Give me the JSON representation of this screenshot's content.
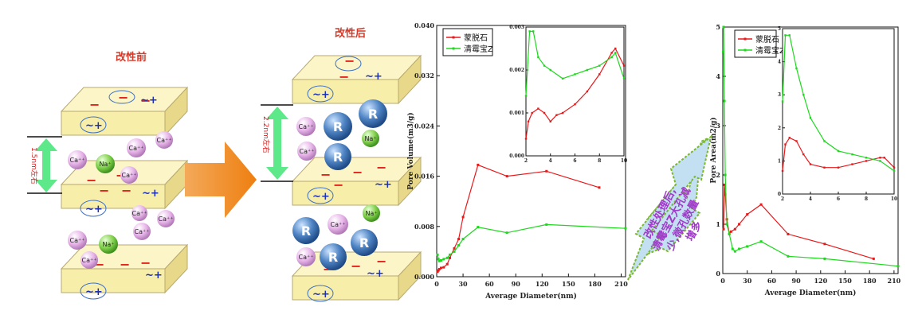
{
  "diagram": {
    "before_label": "改性前",
    "after_label": "改性后",
    "spacing_before": "1.5nm左右",
    "spacing_after": "2.2nm左右",
    "ion_ca": "Ca⁺⁺",
    "ion_na": "Na⁺",
    "ion_r": "R",
    "layer_sign": "~+",
    "minus_sign": "−",
    "callout_text": [
      "改性处理后,",
      "清霉宝Z大孔减",
      "少,微孔数量",
      "增多"
    ],
    "colors": {
      "slab": "#f7eeaa",
      "ca_ion": "#e6b3e8",
      "na_ion": "#7fcf4a",
      "r_ion": "#4f84c4",
      "arrow": "#f08a1c",
      "spacing": "#5de88a",
      "callout_fill": "#c2e0f2",
      "callout_border": "#7ab82a",
      "minus": "#e0201b",
      "plus": "#1b2fb8"
    }
  },
  "chart_data": [
    {
      "type": "line",
      "ylabel": "Pore Volume(m3/g)",
      "xlabel": "Average Diameter(nm)",
      "xlim": [
        0,
        215
      ],
      "ylim": [
        0,
        0.04
      ],
      "xticks": [
        "0",
        "30",
        "60",
        "90",
        "120",
        "150",
        "180",
        "210"
      ],
      "yticks": [
        "0.000",
        "0.008",
        "0.016",
        "0.024",
        "0.032",
        "0.040"
      ],
      "legend_position": "top-left",
      "series": [
        {
          "name": "蒙脱石",
          "color": "#e8191b",
          "x": [
            1,
            2,
            3,
            5,
            8,
            12,
            15,
            20,
            25,
            30,
            47,
            80,
            125,
            185
          ],
          "y": [
            0.0008,
            0.001,
            0.0012,
            0.0014,
            0.0015,
            0.002,
            0.003,
            0.0045,
            0.006,
            0.0095,
            0.0178,
            0.016,
            0.0168,
            0.0142
          ]
        },
        {
          "name": "清霉宝Z",
          "color": "#1ed81e",
          "x": [
            1,
            2,
            3,
            5,
            8,
            12,
            15,
            20,
            25,
            30,
            47,
            80,
            125,
            215
          ],
          "y": [
            0.0035,
            0.0028,
            0.0025,
            0.0026,
            0.0028,
            0.003,
            0.0035,
            0.004,
            0.005,
            0.006,
            0.0079,
            0.007,
            0.0083,
            0.0077
          ]
        }
      ],
      "inset": {
        "xlim": [
          2,
          10
        ],
        "ylim": [
          0,
          0.003
        ],
        "xticks": [
          "2",
          "4",
          "6",
          "8",
          "10"
        ],
        "yticks": [
          "0.000",
          "0.001",
          "0.002",
          "0.003"
        ],
        "series": [
          {
            "name": "蒙脱石",
            "x": [
              2,
              2.2,
              2.5,
              3,
              3.5,
              4,
              4.5,
              5,
              6,
              7,
              8,
              9,
              9.3,
              10
            ],
            "y": [
              0.0004,
              0.0008,
              0.001,
              0.0011,
              0.001,
              0.0008,
              0.00095,
              0.001,
              0.0012,
              0.0015,
              0.0019,
              0.0024,
              0.0025,
              0.0021
            ]
          },
          {
            "name": "清霉宝Z",
            "x": [
              2,
              2.3,
              2.6,
              3,
              3.5,
              4,
              5,
              6,
              7,
              8,
              9,
              9.3,
              10
            ],
            "y": [
              0.0014,
              0.0029,
              0.0029,
              0.0023,
              0.0021,
              0.002,
              0.0018,
              0.0019,
              0.002,
              0.0021,
              0.0023,
              0.0024,
              0.0018
            ]
          }
        ]
      }
    },
    {
      "type": "line",
      "ylabel": "Pore Area(m2/g)",
      "xlabel": "Average Diameter(nm)",
      "xlim": [
        0,
        215
      ],
      "ylim": [
        0,
        5
      ],
      "xticks": [
        "0",
        "30",
        "60",
        "90",
        "120",
        "150",
        "180",
        "210"
      ],
      "yticks": [
        "0",
        "1",
        "2",
        "3",
        "4",
        "5"
      ],
      "legend_position": "top-right",
      "series": [
        {
          "name": "蒙脱石",
          "color": "#e8191b",
          "x": [
            1,
            2,
            3,
            5,
            8,
            10,
            15,
            20,
            30,
            47,
            80,
            125,
            185
          ],
          "y": [
            0.9,
            1.8,
            1.6,
            1.1,
            0.8,
            0.85,
            0.9,
            1.0,
            1.2,
            1.4,
            0.8,
            0.6,
            0.3
          ]
        },
        {
          "name": "清霉宝Z",
          "color": "#1ed81e",
          "x": [
            0.5,
            1,
            2,
            3,
            5,
            8,
            12,
            15,
            20,
            30,
            47,
            80,
            125,
            215
          ],
          "y": [
            4.5,
            5.0,
            3.5,
            2.0,
            1.0,
            0.8,
            0.5,
            0.45,
            0.5,
            0.55,
            0.65,
            0.35,
            0.3,
            0.15
          ]
        }
      ],
      "inset": {
        "xlim": [
          2,
          10
        ],
        "ylim": [
          0,
          5
        ],
        "xticks": [
          "2",
          "4",
          "6",
          "8",
          "10"
        ],
        "yticks": [
          "0",
          "1",
          "2",
          "3",
          "4",
          "5"
        ],
        "series": [
          {
            "name": "蒙脱石",
            "x": [
              2,
              2.2,
              2.5,
              3,
              3.5,
              4,
              5,
              6,
              7,
              8,
              9,
              9.3,
              10
            ],
            "y": [
              0.7,
              1.5,
              1.7,
              1.6,
              1.2,
              0.9,
              0.8,
              0.8,
              0.9,
              1.0,
              1.1,
              1.1,
              0.8
            ]
          },
          {
            "name": "清霉宝Z",
            "x": [
              2,
              2.2,
              2.5,
              3,
              3.5,
              4,
              5,
              6,
              7,
              8,
              9,
              10
            ],
            "y": [
              2.8,
              4.8,
              4.8,
              3.8,
              3.0,
              2.3,
              1.6,
              1.3,
              1.2,
              1.1,
              1.0,
              0.7
            ]
          }
        ]
      }
    }
  ]
}
